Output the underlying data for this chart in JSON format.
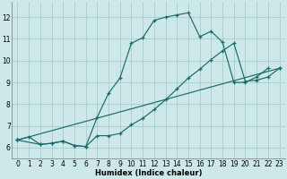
{
  "title": "",
  "xlabel": "Humidex (Indice chaleur)",
  "bg_color": "#cce8e8",
  "grid_color": "#aacccc",
  "line_color": "#1a6b6b",
  "xlim": [
    -0.5,
    23.5
  ],
  "ylim": [
    5.5,
    12.7
  ],
  "xticks": [
    0,
    1,
    2,
    3,
    4,
    5,
    6,
    7,
    8,
    9,
    10,
    11,
    12,
    13,
    14,
    15,
    16,
    17,
    18,
    19,
    20,
    21,
    22,
    23
  ],
  "yticks": [
    6,
    7,
    8,
    9,
    10,
    11,
    12
  ],
  "line1_x": [
    0,
    1,
    2,
    3,
    4,
    5,
    6,
    7,
    8,
    9,
    10,
    11,
    12,
    13,
    14,
    15,
    16,
    17,
    18,
    19,
    20,
    21,
    22
  ],
  "line1_y": [
    6.35,
    6.5,
    6.15,
    6.2,
    6.3,
    6.1,
    6.05,
    7.4,
    8.5,
    9.2,
    10.8,
    11.05,
    11.85,
    12.0,
    12.1,
    12.2,
    11.1,
    11.35,
    10.85,
    9.0,
    9.0,
    9.25,
    9.65
  ],
  "line2_x": [
    0,
    2,
    3,
    4,
    5,
    6,
    7,
    8,
    9,
    10,
    11,
    12,
    13,
    14,
    15,
    16,
    17,
    18,
    19,
    20,
    21,
    22,
    23
  ],
  "line2_y": [
    6.35,
    6.15,
    6.2,
    6.3,
    6.1,
    6.05,
    6.55,
    6.55,
    6.65,
    7.05,
    7.35,
    7.75,
    8.2,
    8.7,
    9.2,
    9.6,
    10.05,
    10.45,
    10.8,
    9.05,
    9.1,
    9.25,
    9.65
  ],
  "line3_x": [
    0,
    23
  ],
  "line3_y": [
    6.35,
    9.65
  ]
}
